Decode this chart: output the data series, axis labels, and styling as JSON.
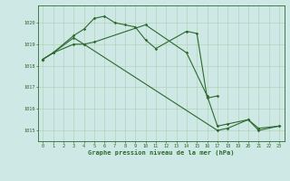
{
  "title": "Graphe pression niveau de la mer (hPa)",
  "bg_color": "#cde8e5",
  "line_color": "#2d6a2d",
  "grid_color": "#b0ccb0",
  "xlim": [
    -0.5,
    23.5
  ],
  "ylim": [
    1014.5,
    1020.8
  ],
  "yticks": [
    1015,
    1016,
    1017,
    1018,
    1019,
    1020
  ],
  "xticks": [
    0,
    1,
    2,
    3,
    4,
    5,
    6,
    7,
    8,
    9,
    10,
    11,
    12,
    13,
    14,
    15,
    16,
    17,
    18,
    19,
    20,
    21,
    22,
    23
  ],
  "series_raw": {
    "s1_x": [
      0,
      1,
      3,
      4,
      5,
      6,
      7,
      8,
      9,
      10,
      11,
      14,
      15,
      16,
      17
    ],
    "s1_y": [
      1018.3,
      1018.6,
      1019.4,
      1019.7,
      1020.2,
      1020.3,
      1020.0,
      1019.9,
      1019.8,
      1019.2,
      1018.8,
      1019.6,
      1019.5,
      1016.5,
      1016.6
    ],
    "s2_x": [
      0,
      1,
      3,
      4,
      5,
      10,
      14,
      16,
      17,
      18,
      20,
      21,
      23
    ],
    "s2_y": [
      1018.3,
      1018.6,
      1019.3,
      1019.0,
      1019.1,
      1019.9,
      1018.6,
      1016.6,
      1015.2,
      1015.3,
      1015.5,
      1015.1,
      1015.2
    ],
    "s3_x": [
      0,
      1,
      3,
      4,
      17,
      18,
      20,
      21,
      23
    ],
    "s3_y": [
      1018.3,
      1018.6,
      1019.0,
      1019.0,
      1015.0,
      1015.1,
      1015.5,
      1015.0,
      1015.2
    ]
  }
}
